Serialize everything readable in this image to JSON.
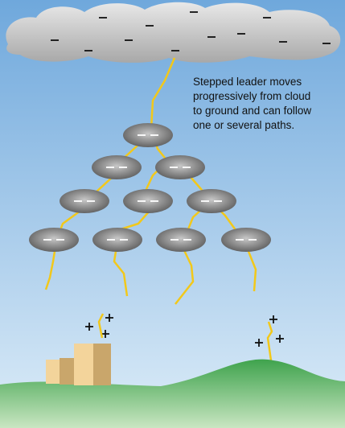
{
  "caption": {
    "lines": [
      "Stepped leader moves",
      "progressively from cloud",
      "to ground and can follow",
      "one or several paths."
    ]
  }
}
